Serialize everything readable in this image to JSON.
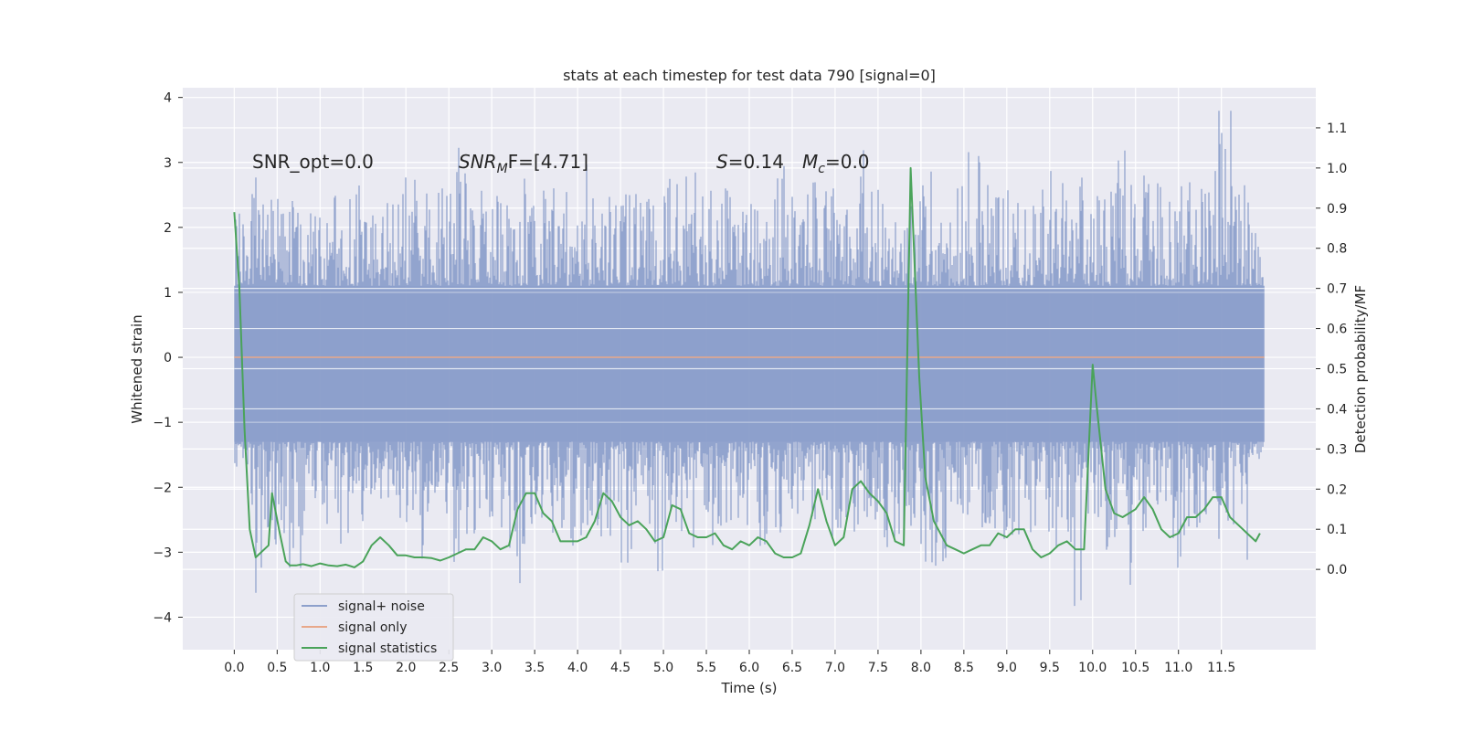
{
  "chart_data": {
    "type": "line",
    "title": "stats at each timestep for test data 790 [signal=0]",
    "xlabel": "Time (s)",
    "ylabel": "Whitened strain",
    "y2label": "Detection probability/MF",
    "xlim": [
      -0.6,
      12.6
    ],
    "ylim": [
      -4.5,
      4.15
    ],
    "y2lim": [
      -0.2,
      1.2
    ],
    "xticks": [
      0.0,
      0.5,
      1.0,
      1.5,
      2.0,
      2.5,
      3.0,
      3.5,
      4.0,
      4.5,
      5.0,
      5.5,
      6.0,
      6.5,
      7.0,
      7.5,
      8.0,
      8.5,
      9.0,
      9.5,
      10.0,
      10.5,
      11.0,
      11.5
    ],
    "xtick_labels": [
      "0.0",
      "0.5",
      "1.0",
      "1.5",
      "2.0",
      "2.5",
      "3.0",
      "3.5",
      "4.0",
      "4.5",
      "5.0",
      "5.5",
      "6.0",
      "6.5",
      "7.0",
      "7.5",
      "8.0",
      "8.5",
      "9.0",
      "9.5",
      "10.0",
      "10.5",
      "11.0",
      "11.5"
    ],
    "yticks": [
      4,
      3,
      2,
      1,
      0,
      -1,
      -2,
      -3,
      -4
    ],
    "ytick_labels": [
      "4",
      "3",
      "2",
      "1",
      "0",
      "−1",
      "−2",
      "−3",
      "−4"
    ],
    "y2ticks": [
      1.1,
      1.0,
      0.9,
      0.8,
      0.7,
      0.6,
      0.5,
      0.4,
      0.3,
      0.2,
      0.1,
      0.0
    ],
    "y2tick_labels": [
      "1.1",
      "1.0",
      "0.9",
      "0.8",
      "0.7",
      "0.6",
      "0.5",
      "0.4",
      "0.3",
      "0.2",
      "0.1",
      "0.0"
    ],
    "grid": true,
    "legend_position": "lower-left",
    "annotations": {
      "snr_opt": "SNR_opt=0.0",
      "snr_mf_main": "SNR",
      "snr_mf_sub": "M",
      "snr_mf_rest": "F=[4.71]",
      "s_var": "S",
      "s_rest": "=0.14",
      "mc_var": "M",
      "mc_sub": "c",
      "mc_rest": "=0.0"
    },
    "series": [
      {
        "name": "signal+ noise",
        "axis": "left",
        "color": "#8da0cb",
        "t_range": [
          0.0,
          12.0
        ],
        "envelope_upper": [
          2.3,
          2.8,
          2.5,
          2.6,
          2.4,
          2.5,
          2.6,
          2.7,
          2.4,
          2.5,
          2.8,
          2.6,
          2.7,
          3.4,
          2.6,
          2.5,
          2.7,
          2.8,
          2.6,
          2.7,
          2.6,
          3.3,
          2.5,
          2.8,
          2.6,
          2.7,
          2.8,
          3.3,
          2.6,
          2.7,
          2.8,
          2.6,
          2.9,
          3.3,
          2.8,
          2.7,
          2.6,
          3.3,
          2.7,
          2.5,
          2.6,
          3.2,
          2.6,
          2.7,
          3.4,
          2.8,
          2.7,
          2.6,
          2.8,
          3.2,
          2.7,
          2.9,
          2.7,
          3.2,
          2.8,
          2.7,
          2.6,
          3.5,
          2.7,
          3.8,
          2.8,
          2.4
        ],
        "envelope_lower": [
          -1.7,
          -4.1,
          -2.9,
          -3.6,
          -3.0,
          -2.6,
          -3.0,
          -2.7,
          -2.4,
          -2.6,
          -2.7,
          -3.1,
          -2.5,
          -3.4,
          -2.8,
          -2.6,
          -3.0,
          -3.5,
          -2.6,
          -2.8,
          -2.9,
          -2.7,
          -2.8,
          -3.4,
          -2.6,
          -3.5,
          -2.7,
          -3.0,
          -2.9,
          -2.6,
          -2.6,
          -3.2,
          -2.9,
          -2.5,
          -2.8,
          -2.6,
          -3.1,
          -2.7,
          -2.6,
          -3.0,
          -3.0,
          -3.2,
          -3.3,
          -2.8,
          -2.5,
          -3.0,
          -2.9,
          -2.8,
          -2.6,
          -3.1,
          -3.9,
          -2.6,
          -3.0,
          -3.6,
          -2.8,
          -2.7,
          -3.3,
          -2.8,
          -2.6,
          -2.8,
          -3.2,
          -1.6
        ]
      },
      {
        "name": "signal only",
        "axis": "left",
        "color": "#e8a88a",
        "x": [
          0.0,
          12.0
        ],
        "y": [
          0.0,
          0.0
        ]
      },
      {
        "name": "signal statistics",
        "axis": "right",
        "color": "#4aa35a",
        "x": [
          0.0,
          0.06,
          0.12,
          0.18,
          0.25,
          0.3,
          0.4,
          0.44,
          0.53,
          0.6,
          0.65,
          0.72,
          0.8,
          0.9,
          1.0,
          1.1,
          1.2,
          1.3,
          1.4,
          1.5,
          1.6,
          1.7,
          1.8,
          1.9,
          2.0,
          2.1,
          2.2,
          2.3,
          2.4,
          2.5,
          2.6,
          2.7,
          2.8,
          2.9,
          3.0,
          3.1,
          3.2,
          3.3,
          3.4,
          3.5,
          3.6,
          3.7,
          3.8,
          3.9,
          4.0,
          4.1,
          4.2,
          4.3,
          4.4,
          4.5,
          4.6,
          4.7,
          4.8,
          4.9,
          5.0,
          5.1,
          5.2,
          5.3,
          5.4,
          5.5,
          5.6,
          5.7,
          5.8,
          5.9,
          6.0,
          6.1,
          6.2,
          6.3,
          6.4,
          6.5,
          6.6,
          6.7,
          6.8,
          6.9,
          7.0,
          7.1,
          7.2,
          7.3,
          7.4,
          7.5,
          7.6,
          7.7,
          7.8,
          7.88,
          7.98,
          8.05,
          8.15,
          8.3,
          8.4,
          8.5,
          8.6,
          8.7,
          8.8,
          8.9,
          9.0,
          9.1,
          9.2,
          9.3,
          9.4,
          9.5,
          9.6,
          9.7,
          9.8,
          9.9,
          10.0,
          10.05,
          10.15,
          10.25,
          10.35,
          10.5,
          10.6,
          10.7,
          10.8,
          10.9,
          11.0,
          11.1,
          11.2,
          11.3,
          11.4,
          11.5,
          11.6,
          11.7,
          11.8,
          11.9,
          11.95
        ],
        "y": [
          0.89,
          0.7,
          0.35,
          0.1,
          0.03,
          0.04,
          0.06,
          0.19,
          0.09,
          0.02,
          0.01,
          0.01,
          0.013,
          0.008,
          0.015,
          0.01,
          0.008,
          0.012,
          0.005,
          0.02,
          0.06,
          0.08,
          0.06,
          0.035,
          0.035,
          0.03,
          0.03,
          0.028,
          0.022,
          0.03,
          0.04,
          0.05,
          0.05,
          0.08,
          0.07,
          0.05,
          0.06,
          0.15,
          0.19,
          0.19,
          0.14,
          0.12,
          0.07,
          0.07,
          0.07,
          0.08,
          0.12,
          0.19,
          0.17,
          0.13,
          0.11,
          0.12,
          0.1,
          0.07,
          0.08,
          0.16,
          0.15,
          0.09,
          0.08,
          0.08,
          0.09,
          0.06,
          0.05,
          0.07,
          0.06,
          0.08,
          0.07,
          0.04,
          0.03,
          0.03,
          0.04,
          0.11,
          0.2,
          0.12,
          0.06,
          0.08,
          0.2,
          0.22,
          0.19,
          0.17,
          0.14,
          0.07,
          0.06,
          1.0,
          0.48,
          0.23,
          0.12,
          0.06,
          0.05,
          0.04,
          0.05,
          0.06,
          0.06,
          0.09,
          0.08,
          0.1,
          0.1,
          0.05,
          0.03,
          0.04,
          0.06,
          0.07,
          0.05,
          0.05,
          0.51,
          0.4,
          0.2,
          0.14,
          0.13,
          0.15,
          0.18,
          0.15,
          0.1,
          0.08,
          0.09,
          0.13,
          0.13,
          0.15,
          0.18,
          0.18,
          0.13,
          0.11,
          0.09,
          0.07,
          0.09
        ]
      }
    ]
  }
}
